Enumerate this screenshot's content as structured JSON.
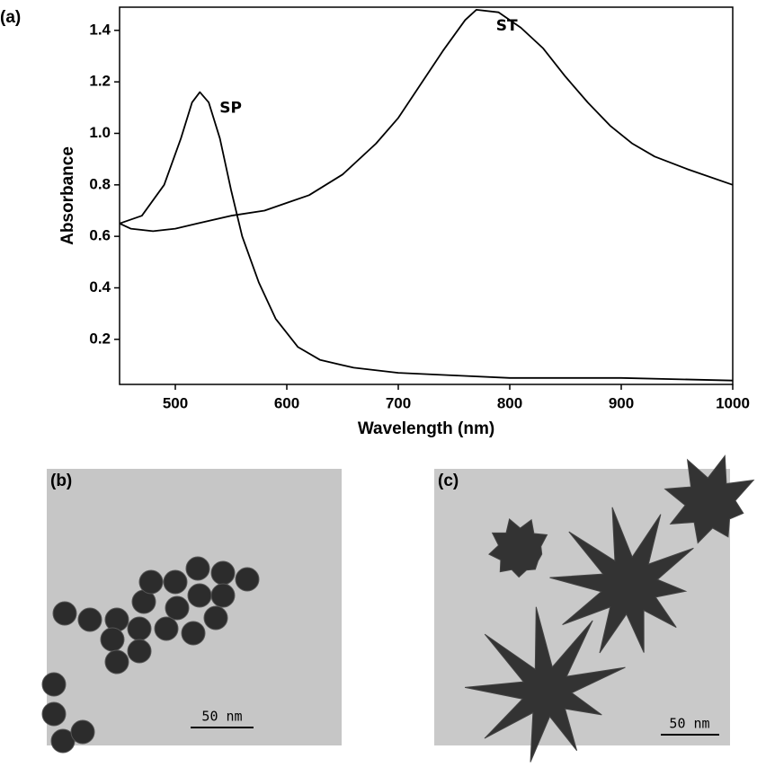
{
  "chart_data": {
    "type": "line",
    "panel_label": "(a)",
    "x_label": "Wavelength (nm)",
    "y_label": "Absorbance",
    "xlim": [
      450,
      1000
    ],
    "ylim": [
      0.025,
      1.49
    ],
    "xticks": [
      500,
      600,
      700,
      800,
      900,
      1000
    ],
    "yticks": [
      0.2,
      0.4,
      0.6,
      0.8,
      {
        "value": 1,
        "label": "1.0"
      },
      1.2,
      1.4
    ],
    "grid": false,
    "series": [
      {
        "name": "SP",
        "color": "#000000",
        "x": [
          450,
          470,
          490,
          505,
          515,
          522,
          530,
          540,
          550,
          560,
          575,
          590,
          610,
          630,
          660,
          700,
          750,
          800,
          900,
          1000
        ],
        "values": [
          0.65,
          0.68,
          0.8,
          0.98,
          1.12,
          1.16,
          1.12,
          0.98,
          0.78,
          0.6,
          0.42,
          0.28,
          0.17,
          0.12,
          0.09,
          0.07,
          0.06,
          0.05,
          0.05,
          0.04
        ]
      },
      {
        "name": "ST",
        "color": "#000000",
        "x": [
          450,
          460,
          480,
          500,
          520,
          550,
          580,
          600,
          620,
          650,
          680,
          700,
          720,
          740,
          760,
          770,
          790,
          810,
          830,
          850,
          870,
          890,
          910,
          930,
          960,
          1000
        ],
        "values": [
          0.65,
          0.63,
          0.62,
          0.63,
          0.65,
          0.68,
          0.7,
          0.73,
          0.76,
          0.84,
          0.96,
          1.06,
          1.19,
          1.32,
          1.44,
          1.48,
          1.47,
          1.41,
          1.33,
          1.22,
          1.12,
          1.03,
          0.96,
          0.91,
          0.86,
          0.8
        ]
      }
    ]
  },
  "panels": [
    {
      "label": "(b)",
      "scale_bar": "50 nm"
    },
    {
      "label": "(c)",
      "scale_bar": "50 nm"
    }
  ]
}
